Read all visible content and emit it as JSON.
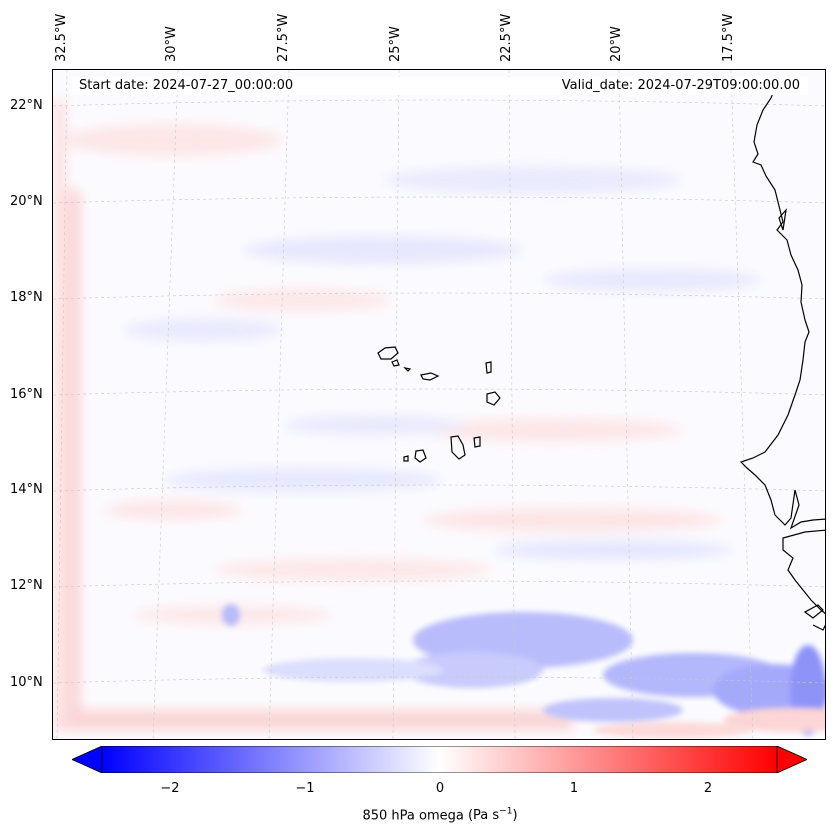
{
  "map": {
    "variable": "850 hPa omega",
    "units_base": "(Pa s",
    "units_exp": "−1",
    "units_close": ")",
    "start_date": "Start date: 2024-07-27_00:00:00",
    "valid_date": "Valid_date: 2024-07-29T09:00:00.00",
    "lon_labels": [
      "32.5°W",
      "30°W",
      "27.5°W",
      "25°W",
      "22.5°W",
      "20°W",
      "17.5°W"
    ],
    "lat_labels": [
      "22°N",
      "20°N",
      "18°N",
      "16°N",
      "14°N",
      "12°N",
      "10°N"
    ],
    "region": "Cape Verde / West Africa coast",
    "colors": {
      "negative": "#0000ff",
      "zero": "#ffffff",
      "positive": "#ff0000",
      "coastline": "#000000",
      "grid": "#c8c8c8"
    }
  },
  "colorbar": {
    "ticks": [
      "−2",
      "−1",
      "0",
      "1",
      "2"
    ],
    "tick_values": [
      -2,
      -1,
      0,
      1,
      2
    ],
    "range": [
      -2.5,
      2.5
    ],
    "colormap": "bwr",
    "extend": "both"
  }
}
